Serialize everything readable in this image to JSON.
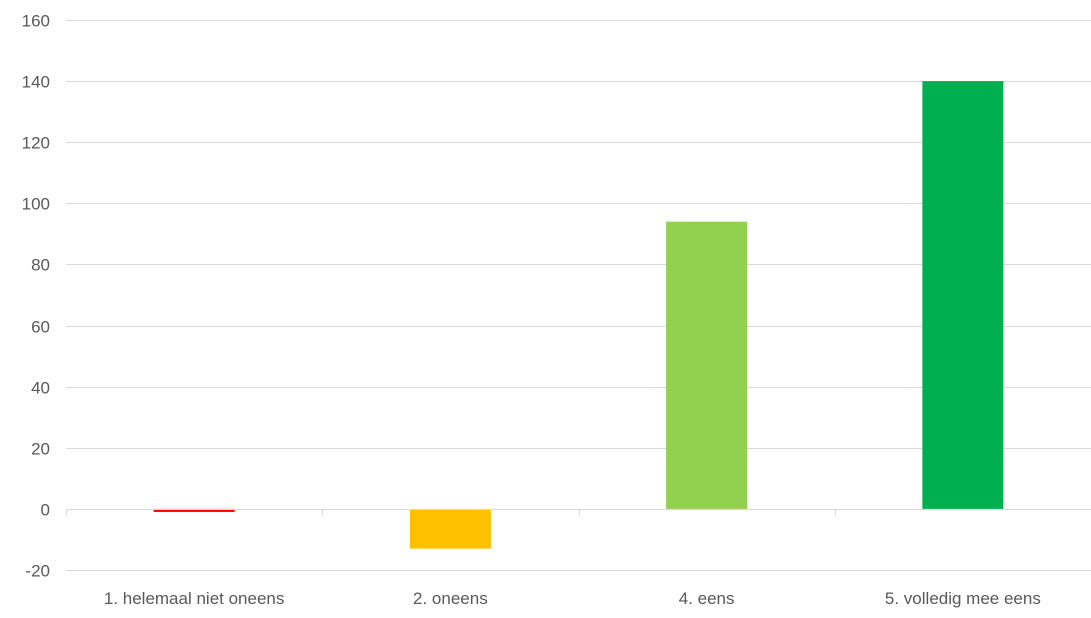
{
  "chart_data": {
    "type": "bar",
    "title": "",
    "xlabel": "",
    "ylabel": "",
    "categories": [
      "1. helemaal niet oneens",
      "2. oneens",
      "4. eens",
      "5. volledig mee eens"
    ],
    "values": [
      -1,
      -13,
      94,
      140
    ],
    "colors": [
      "#FF0000",
      "#FFC000",
      "#92D050",
      "#00B050"
    ],
    "ylim": [
      -20,
      160
    ],
    "yticks": [
      -20,
      0,
      20,
      40,
      60,
      80,
      100,
      120,
      140,
      160
    ],
    "grid": true,
    "legend": false
  },
  "style": {
    "gridline_color": "#D9D9D9",
    "axis_line_color": "#D9D9D9",
    "text_color": "#595959"
  }
}
